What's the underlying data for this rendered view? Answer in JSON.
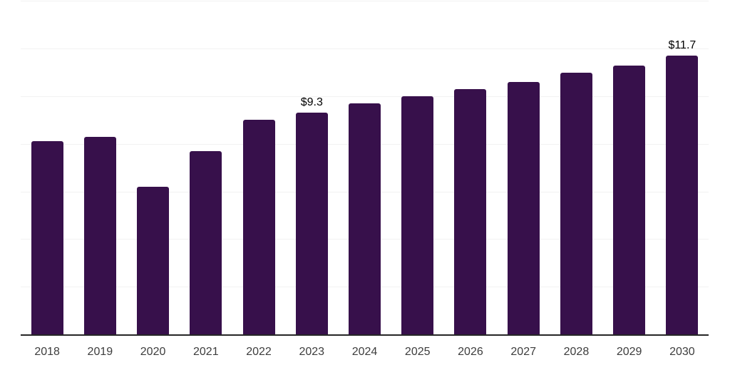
{
  "chart_data": {
    "type": "bar",
    "title": "",
    "categories": [
      "2018",
      "2019",
      "2020",
      "2021",
      "2022",
      "2023",
      "2024",
      "2025",
      "2026",
      "2027",
      "2028",
      "2029",
      "2030"
    ],
    "values": [
      8.1,
      8.3,
      6.2,
      7.7,
      9.0,
      9.3,
      9.7,
      10.0,
      10.3,
      10.6,
      11.0,
      11.3,
      11.7
    ],
    "data_labels": [
      {
        "category": "2023",
        "text": "$9.3"
      },
      {
        "category": "2030",
        "text": "$11.7"
      }
    ],
    "xlabel": "",
    "ylabel": "",
    "ylim": [
      0,
      14
    ],
    "grid": true,
    "grid_step": 2,
    "legend_position": "none",
    "colors": {
      "bar": "#37104B",
      "grid": "#f2f2f2",
      "axis": "#262626",
      "tick_label": "#3d3d3d",
      "data_label": "#000000",
      "background": "#ffffff"
    }
  }
}
